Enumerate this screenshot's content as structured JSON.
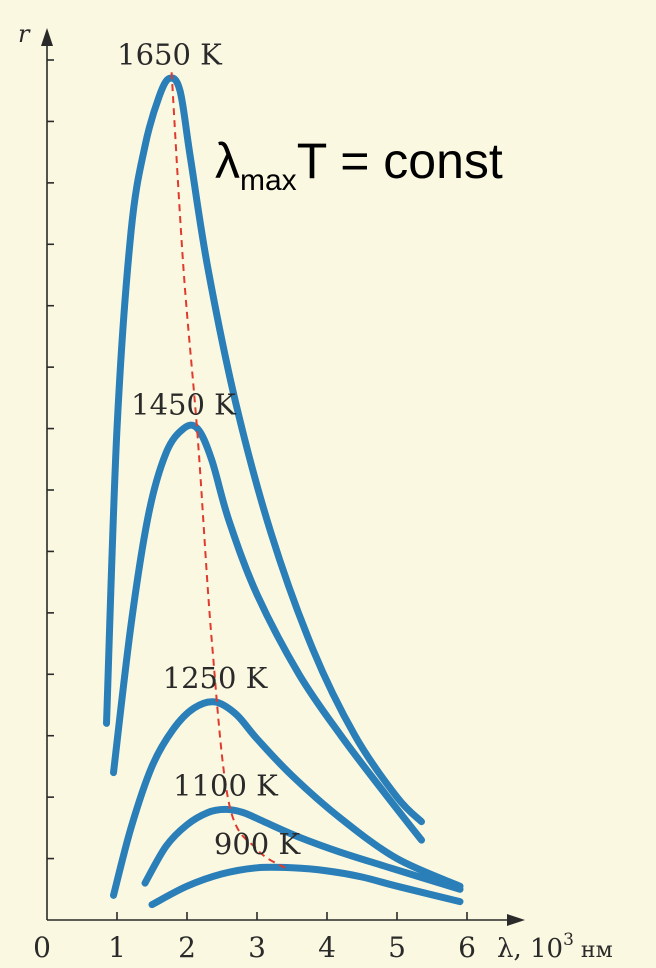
{
  "chart_data": {
    "type": "line",
    "ylabel": "r",
    "xlabel_prefix": "λ, 10",
    "xlabel_exp": "3",
    "xlabel_unit": " нм",
    "x_tick_labels": [
      "0",
      "1",
      "2",
      "3",
      "4",
      "5",
      "6"
    ],
    "xlim": [
      0,
      6.6
    ],
    "ylim": [
      0,
      14
    ],
    "y_minor_ticks": 14,
    "formula": {
      "main": "λ",
      "sub": "max",
      "rest": "T = const"
    },
    "colors": {
      "curve": "#2a7fb8",
      "locus": "#e03a2e",
      "axis": "#2a2a2a",
      "background": "#fbf8e1"
    },
    "series": [
      {
        "name": "1650 K",
        "x": [
          0.85,
          1.0,
          1.2,
          1.4,
          1.6,
          1.75,
          1.9,
          2.05,
          2.3,
          2.7,
          3.2,
          3.8,
          4.4,
          5.0,
          5.35
        ],
        "y": [
          3.2,
          8.0,
          11.2,
          12.6,
          13.4,
          13.7,
          13.5,
          12.4,
          10.6,
          8.4,
          6.3,
          4.4,
          3.0,
          2.0,
          1.6
        ]
      },
      {
        "name": "1450 K",
        "x": [
          0.95,
          1.2,
          1.45,
          1.7,
          1.95,
          2.15,
          2.35,
          2.6,
          3.0,
          3.6,
          4.2,
          4.8,
          5.35
        ],
        "y": [
          2.4,
          4.8,
          6.6,
          7.6,
          8.0,
          8.0,
          7.5,
          6.5,
          5.3,
          4.0,
          3.0,
          2.1,
          1.3
        ]
      },
      {
        "name": "1250 K",
        "x": [
          0.95,
          1.2,
          1.5,
          1.8,
          2.1,
          2.4,
          2.7,
          3.0,
          3.5,
          4.2,
          5.0,
          5.9
        ],
        "y": [
          0.4,
          1.5,
          2.5,
          3.1,
          3.45,
          3.55,
          3.35,
          2.95,
          2.35,
          1.65,
          1.0,
          0.55
        ]
      },
      {
        "name": "1100 K",
        "x": [
          1.4,
          1.7,
          2.0,
          2.3,
          2.55,
          2.8,
          3.1,
          3.6,
          4.2,
          4.9,
          5.9
        ],
        "y": [
          0.6,
          1.2,
          1.55,
          1.75,
          1.8,
          1.75,
          1.6,
          1.35,
          1.1,
          0.85,
          0.5
        ]
      },
      {
        "name": "900 K",
        "x": [
          1.5,
          2.0,
          2.5,
          3.0,
          3.5,
          4.0,
          4.5,
          5.0,
          5.9
        ],
        "y": [
          0.25,
          0.55,
          0.75,
          0.85,
          0.85,
          0.8,
          0.7,
          0.55,
          0.3
        ]
      }
    ],
    "wien_locus": {
      "x": [
        1.78,
        1.95,
        2.15,
        2.35,
        2.6,
        3.0,
        3.4
      ],
      "y": [
        13.8,
        10.6,
        7.9,
        4.6,
        1.9,
        1.15,
        0.85
      ]
    }
  }
}
